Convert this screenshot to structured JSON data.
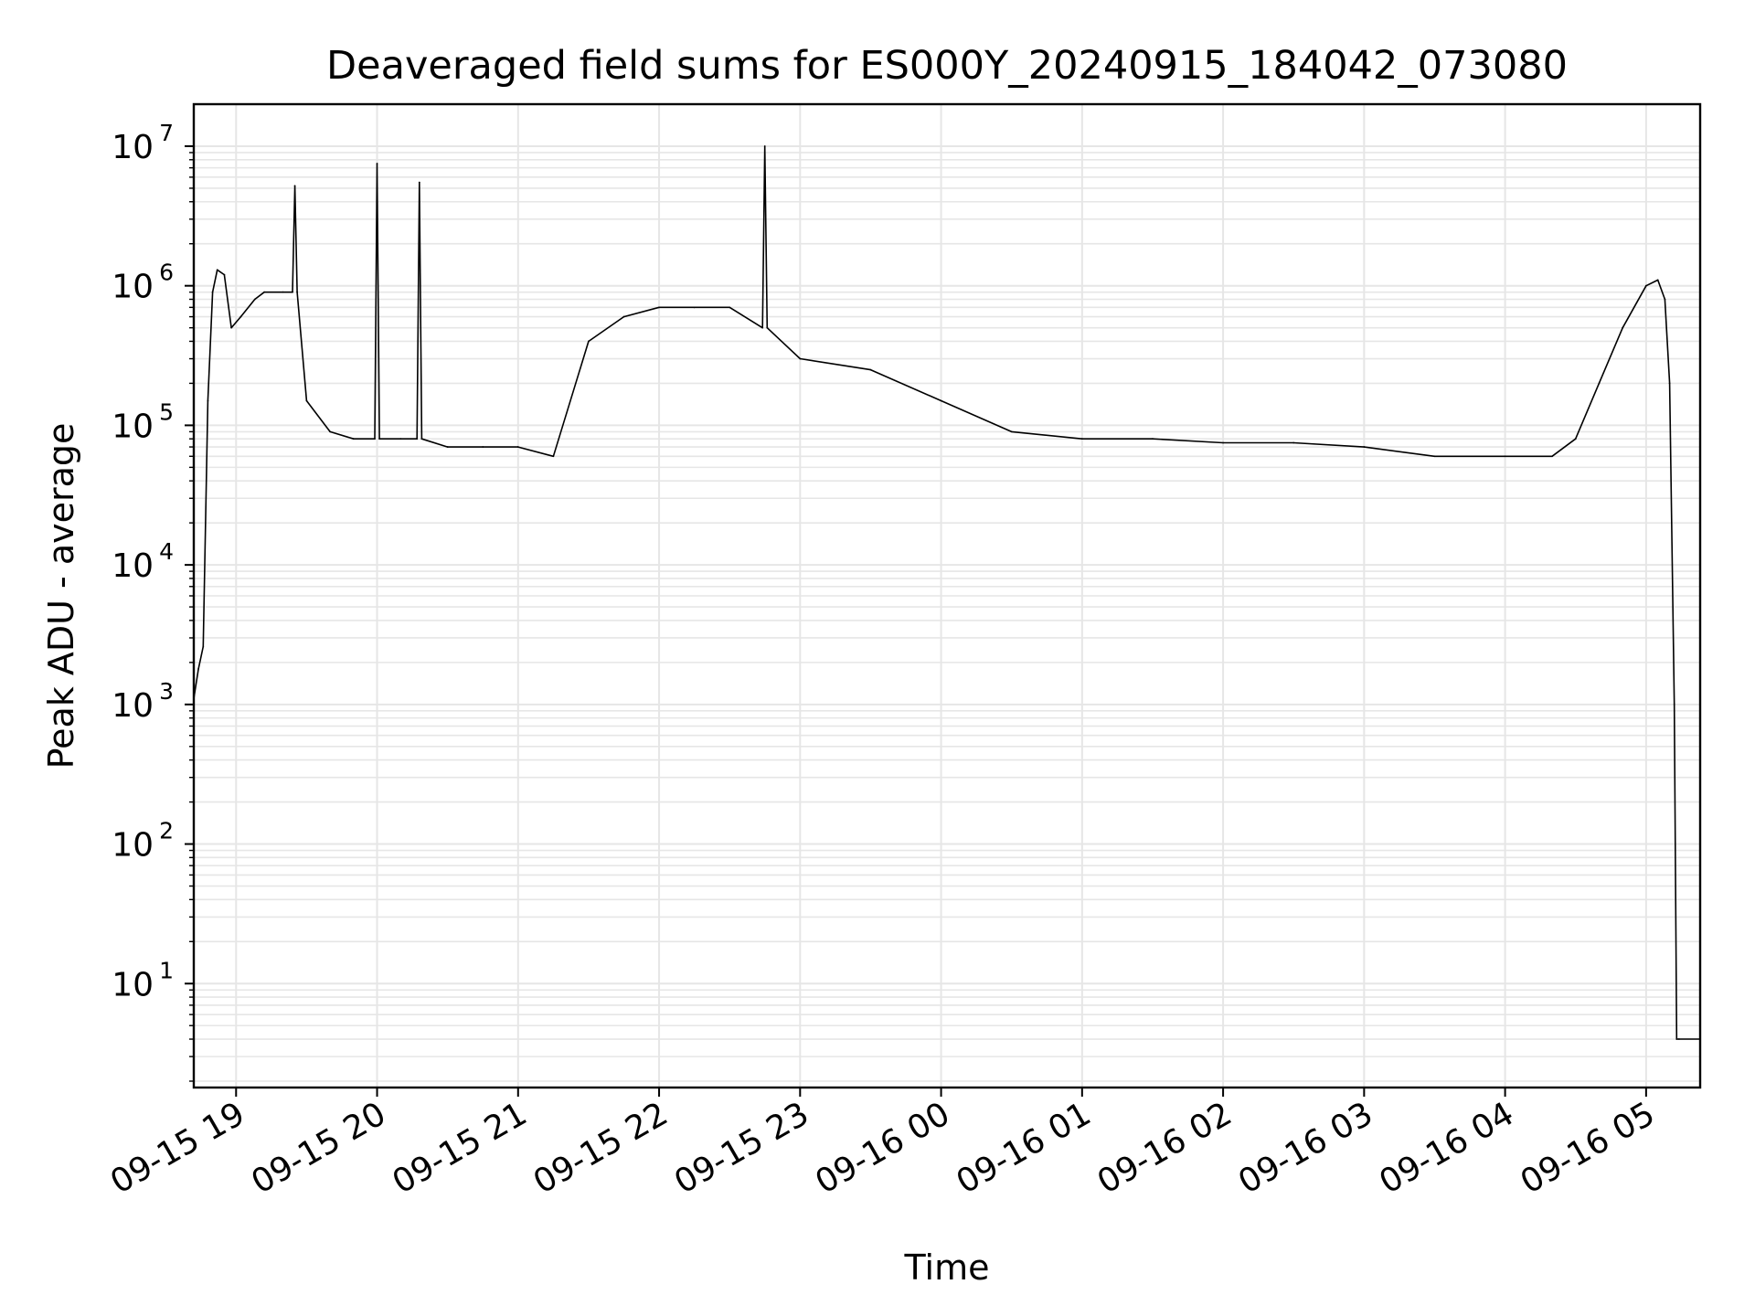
{
  "chart_data": {
    "type": "line",
    "title": "Deaveraged field sums for ES000Y_20240915_184042_073080",
    "xlabel": "Time",
    "ylabel": "Peak ADU - average",
    "y_scale": "log",
    "ylim": [
      1.8,
      20000000
    ],
    "xlim": [
      "2024-09-15 18:42",
      "2024-09-16 05:23"
    ],
    "x_tick_labels": [
      "09-15 19",
      "09-15 20",
      "09-15 21",
      "09-15 22",
      "09-15 23",
      "09-16 00",
      "09-16 01",
      "09-16 02",
      "09-16 03",
      "09-16 04",
      "09-16 05"
    ],
    "x_tick_times": [
      "2024-09-15 19:00",
      "2024-09-15 20:00",
      "2024-09-15 21:00",
      "2024-09-15 22:00",
      "2024-09-15 23:00",
      "2024-09-16 00:00",
      "2024-09-16 01:00",
      "2024-09-16 02:00",
      "2024-09-16 03:00",
      "2024-09-16 04:00",
      "2024-09-16 05:00"
    ],
    "y_ticks": [
      {
        "base": "10",
        "exp": "1",
        "value": 10
      },
      {
        "base": "10",
        "exp": "2",
        "value": 100
      },
      {
        "base": "10",
        "exp": "3",
        "value": 1000
      },
      {
        "base": "10",
        "exp": "4",
        "value": 10000
      },
      {
        "base": "10",
        "exp": "5",
        "value": 100000
      },
      {
        "base": "10",
        "exp": "6",
        "value": 1000000
      },
      {
        "base": "10",
        "exp": "7",
        "value": 10000000
      }
    ],
    "grid": true,
    "line_color": "#000000",
    "grid_color": "#e6e6e6",
    "series": [
      {
        "x": [
          "2024-09-15 18:42",
          "2024-09-15 18:44",
          "2024-09-15 18:46",
          "2024-09-15 18:48",
          "2024-09-15 18:50",
          "2024-09-15 18:52",
          "2024-09-15 18:55",
          "2024-09-15 18:58",
          "2024-09-15 19:02",
          "2024-09-15 19:08",
          "2024-09-15 19:12",
          "2024-09-15 19:20",
          "2024-09-15 19:24",
          "2024-09-15 19:25",
          "2024-09-15 19:26",
          "2024-09-15 19:30",
          "2024-09-15 19:40",
          "2024-09-15 19:50",
          "2024-09-15 19:59",
          "2024-09-15 20:00",
          "2024-09-15 20:01",
          "2024-09-15 20:10",
          "2024-09-15 20:17",
          "2024-09-15 20:18",
          "2024-09-15 20:19",
          "2024-09-15 20:30",
          "2024-09-15 20:45",
          "2024-09-15 21:00",
          "2024-09-15 21:15",
          "2024-09-15 21:30",
          "2024-09-15 21:45",
          "2024-09-15 22:00",
          "2024-09-15 22:15",
          "2024-09-15 22:30",
          "2024-09-15 22:44",
          "2024-09-15 22:45",
          "2024-09-15 22:46",
          "2024-09-15 23:00",
          "2024-09-15 23:30",
          "2024-09-16 00:00",
          "2024-09-16 00:30",
          "2024-09-16 01:00",
          "2024-09-16 01:30",
          "2024-09-16 02:00",
          "2024-09-16 02:30",
          "2024-09-16 03:00",
          "2024-09-16 03:30",
          "2024-09-16 04:00",
          "2024-09-16 04:20",
          "2024-09-16 04:30",
          "2024-09-16 04:40",
          "2024-09-16 04:50",
          "2024-09-16 05:00",
          "2024-09-16 05:05",
          "2024-09-16 05:08",
          "2024-09-16 05:10",
          "2024-09-16 05:12",
          "2024-09-16 05:13",
          "2024-09-16 05:14",
          "2024-09-16 05:23"
        ],
        "y": [
          1100,
          1800,
          2600,
          150000,
          900000,
          1300000,
          1200000,
          500000,
          600000,
          800000,
          900000,
          900000,
          900000,
          5200000,
          900000,
          150000,
          90000,
          80000,
          80000,
          7500000,
          80000,
          80000,
          80000,
          5500000,
          80000,
          70000,
          70000,
          70000,
          60000,
          400000,
          600000,
          700000,
          700000,
          700000,
          500000,
          10000000,
          500000,
          300000,
          250000,
          150000,
          90000,
          80000,
          80000,
          75000,
          75000,
          70000,
          60000,
          60000,
          60000,
          80000,
          200000,
          500000,
          1000000,
          1100000,
          800000,
          200000,
          1000,
          4,
          4,
          4
        ]
      }
    ]
  }
}
